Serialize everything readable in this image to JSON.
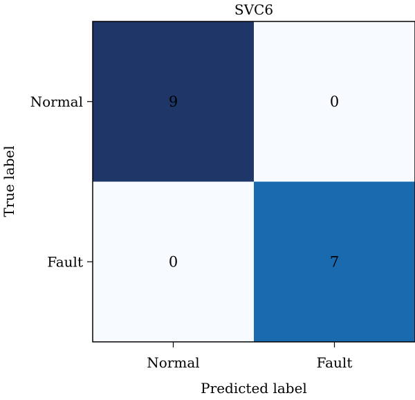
{
  "chart_data": {
    "type": "heatmap",
    "title": "SVC6",
    "xlabel": "Predicted label",
    "ylabel": "True label",
    "x_categories": [
      "Normal",
      "Fault"
    ],
    "y_categories": [
      "Normal",
      "Fault"
    ],
    "values": [
      [
        9,
        0
      ],
      [
        0,
        7
      ]
    ],
    "colormap": "Blues",
    "value_range": [
      0,
      9
    ],
    "colors": {
      "min": "#f7fbff",
      "mid": "#1a6aaf",
      "max": "#1f3768"
    },
    "grid": false
  }
}
